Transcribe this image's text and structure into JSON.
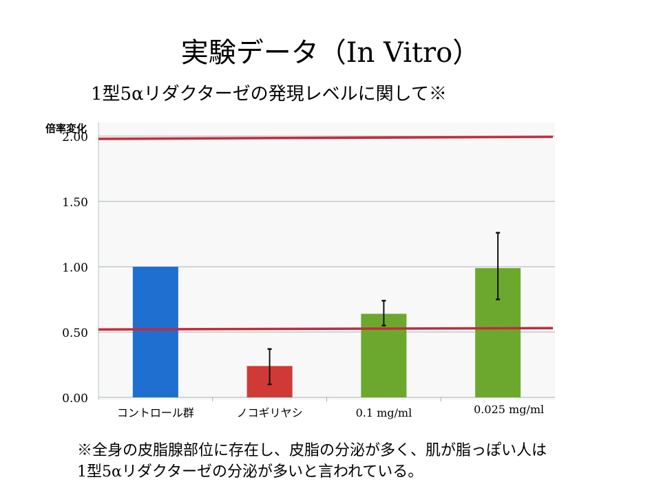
{
  "slide": {
    "title": "実験データ（In Vitro）",
    "subtitle": "1型5αリダクターゼの発現レベルに関して※",
    "note_lines": [
      "※全身の皮脂腺部位に存在し、皮脂の分泌が多く、肌が脂っぽい人は",
      "1型5αリダクターゼの分泌が多いと言われている。"
    ]
  },
  "chart_data": {
    "type": "bar",
    "title": "",
    "ylabel": "倍率変化",
    "xlabel": "",
    "ylim": [
      0,
      2.0
    ],
    "yticks": [
      "0.00",
      "0.50",
      "1.00",
      "1.50",
      "2.00"
    ],
    "ytick_values": [
      0,
      0.5,
      1.0,
      1.5,
      2.0
    ],
    "grid": true,
    "categories": [
      "コントロール群",
      "ノコギリヤシ",
      "0.1 mg/ml",
      "0.025 mg/ml"
    ],
    "values": [
      1.0,
      0.24,
      0.64,
      0.99
    ],
    "error_low": [
      null,
      0.1,
      0.55,
      0.75
    ],
    "error_high": [
      null,
      0.37,
      0.74,
      1.26
    ],
    "colors": [
      "#1f6fd0",
      "#d03a36",
      "#6da82e",
      "#6da82e"
    ],
    "reference_lines": [
      {
        "value": 2.0,
        "color": "#c8283c"
      },
      {
        "value": 0.52,
        "color": "#c8283c"
      }
    ]
  }
}
